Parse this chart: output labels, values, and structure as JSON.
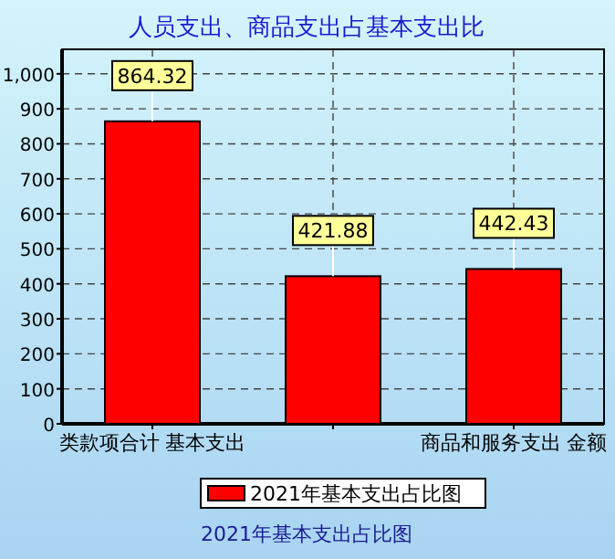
{
  "chart_data": {
    "type": "bar",
    "title": "人员支出、商品支出占基本支出比",
    "categories": [
      "类款项合计 基本支出",
      null,
      "商品和服务支出 金额"
    ],
    "series": [
      {
        "name": "2021年基本支出占比图",
        "color": "#ff0000",
        "values": [
          864.32,
          421.88,
          442.43
        ]
      }
    ],
    "ylim": [
      0,
      1070
    ],
    "yticks": [
      0,
      100,
      200,
      300,
      400,
      500,
      600,
      700,
      800,
      900,
      {
        "value": 1000,
        "label": "1,000"
      }
    ],
    "grid": true,
    "legend": "bottom",
    "data_labels": true,
    "annotations": [
      "2021年基本支出占比图"
    ]
  }
}
